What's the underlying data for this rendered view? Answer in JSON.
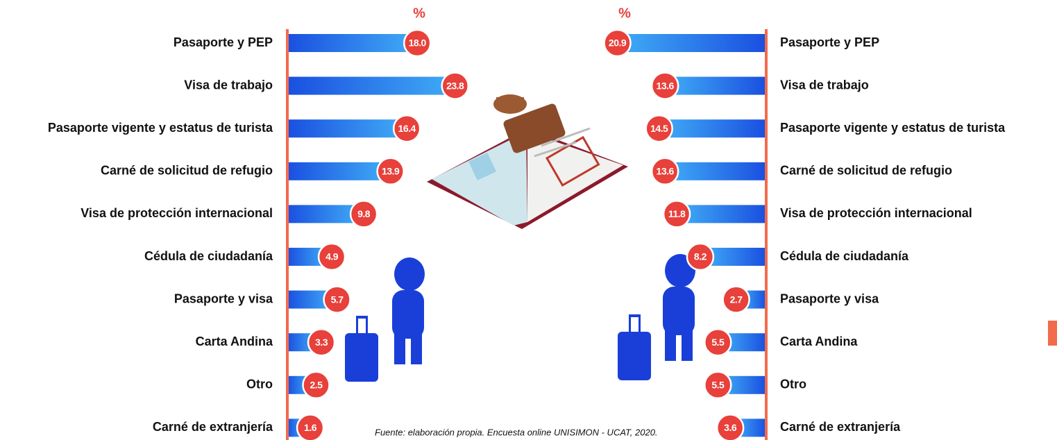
{
  "chart_data": [
    {
      "type": "bar",
      "orientation": "left-to-right",
      "title": "%",
      "categories": [
        "Pasaporte y PEP",
        "Visa de trabajo",
        "Pasaporte vigente y estatus de turista",
        "Carné de solicitud de refugio",
        "Visa de protección internacional",
        "Cédula de ciudadanía",
        "Pasaporte y visa",
        "Carta Andina",
        "Otro",
        "Carné de extranjería"
      ],
      "values": [
        18.0,
        23.8,
        16.4,
        13.9,
        9.8,
        4.9,
        5.7,
        3.3,
        2.5,
        1.6
      ],
      "value_labels": [
        "18.0",
        "23.8",
        "16.4",
        "13.9",
        "9.8",
        "4.9",
        "5.7",
        "3.3",
        "2.5",
        "1.6"
      ],
      "color": "#1f56e6",
      "label_color": "#e8403a",
      "axis_color": "#f26b4a"
    },
    {
      "type": "bar",
      "orientation": "right-to-left",
      "title": "%",
      "categories": [
        "Pasaporte y PEP",
        "Visa de trabajo",
        "Pasaporte vigente y estatus de turista",
        "Carné de solicitud de refugio",
        "Visa de protección internacional",
        "Cédula de ciudadanía",
        "Pasaporte y visa",
        "Carta Andina",
        "Otro",
        "Carné de extranjería"
      ],
      "values": [
        20.9,
        13.6,
        14.5,
        13.6,
        11.8,
        8.2,
        2.7,
        5.5,
        5.5,
        3.6
      ],
      "value_labels": [
        "20.9",
        "13.6",
        "14.5",
        "13.6",
        "11.8",
        "8.2",
        "2.7",
        "5.5",
        "5.5",
        "3.6"
      ],
      "color": "#1f56e6",
      "label_color": "#e8403a",
      "axis_color": "#f26b4a"
    }
  ],
  "source": "Fuente: elaboración propia. Encuesta online UNISIMON - UCAT, 2020."
}
